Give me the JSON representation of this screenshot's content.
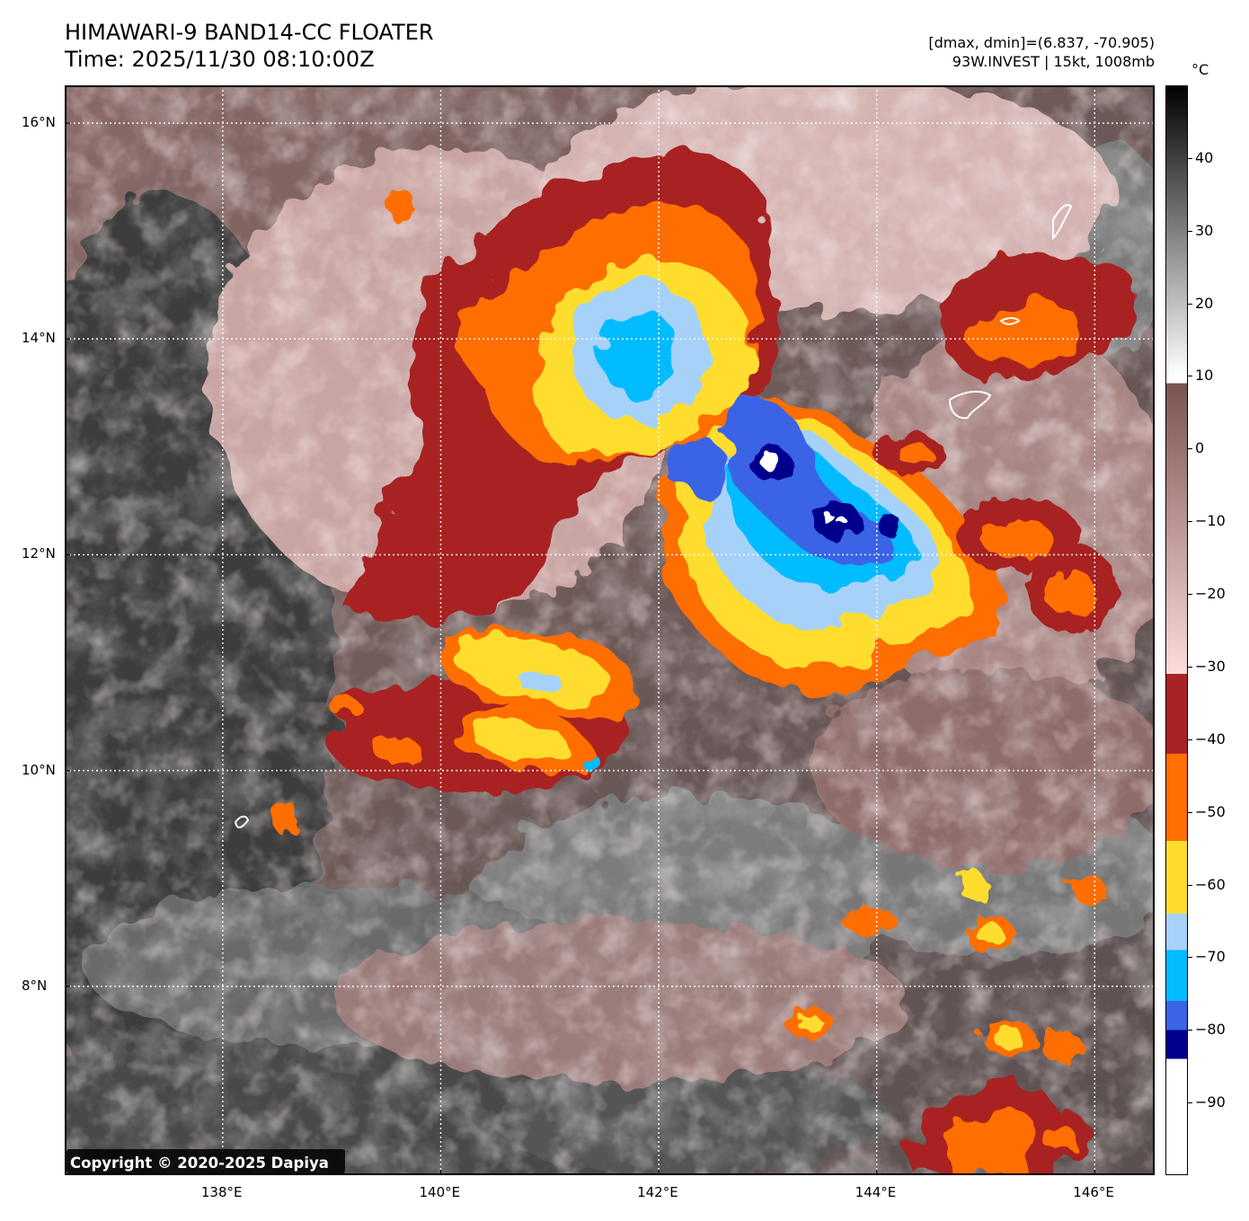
{
  "header": {
    "title": "HIMAWARI-9 BAND14-CC FLOATER",
    "time": "Time: 2025/11/30 08:10:00Z",
    "dmax_dmin": "[dmax, dmin]=(6.837, -70.905)",
    "storm": "93W.INVEST | 15kt, 1008mb"
  },
  "map": {
    "lon_range": [
      136.55,
      146.55
    ],
    "lat_range": [
      6.25,
      16.35
    ],
    "lon_ticks": [
      {
        "value": 138,
        "label": "138°E"
      },
      {
        "value": 140,
        "label": "140°E"
      },
      {
        "value": 142,
        "label": "142°E"
      },
      {
        "value": 144,
        "label": "144°E"
      },
      {
        "value": 146,
        "label": "146°E"
      }
    ],
    "lat_ticks": [
      {
        "value": 16,
        "label": "16°N"
      },
      {
        "value": 14,
        "label": "14°N"
      },
      {
        "value": 12,
        "label": "12°N"
      },
      {
        "value": 10,
        "label": "10°N"
      },
      {
        "value": 8,
        "label": "8°N"
      }
    ],
    "gridlines": true,
    "copyright": "Copyright © 2020-2025 Dapiya"
  },
  "colorbar": {
    "unit": "°C",
    "range": [
      -100,
      50
    ],
    "tick_values": [
      40,
      30,
      20,
      10,
      0,
      -10,
      -20,
      -30,
      -40,
      -50,
      -60,
      -70,
      -80,
      -90
    ],
    "tick_labels": [
      "40",
      "30",
      "20",
      "10",
      "0",
      "−10",
      "−20",
      "−30",
      "−40",
      "−50",
      "−60",
      "−70",
      "−80",
      "−90"
    ],
    "bands": [
      {
        "from": 10,
        "to": 50,
        "type": "gradient",
        "colors": [
          "#ffffff",
          "#000000"
        ]
      },
      {
        "from": -31,
        "to": 9,
        "type": "gradient",
        "colors": [
          "#fcdcdc",
          "#7a5450"
        ]
      },
      {
        "from": -42,
        "to": -31,
        "type": "solid",
        "color": "#a82424"
      },
      {
        "from": -54,
        "to": -42,
        "type": "solid",
        "color": "#ff6e00"
      },
      {
        "from": -64,
        "to": -54,
        "type": "solid",
        "color": "#ffdd2e"
      },
      {
        "from": -69,
        "to": -64,
        "type": "solid",
        "color": "#a6d2fa"
      },
      {
        "from": -76,
        "to": -69,
        "type": "solid",
        "color": "#00bcff"
      },
      {
        "from": -80,
        "to": -76,
        "type": "solid",
        "color": "#3a64e6"
      },
      {
        "from": -84,
        "to": -80,
        "type": "solid",
        "color": "#00008c"
      },
      {
        "from": -100,
        "to": -84,
        "type": "solid",
        "color": "#ffffff"
      }
    ]
  }
}
